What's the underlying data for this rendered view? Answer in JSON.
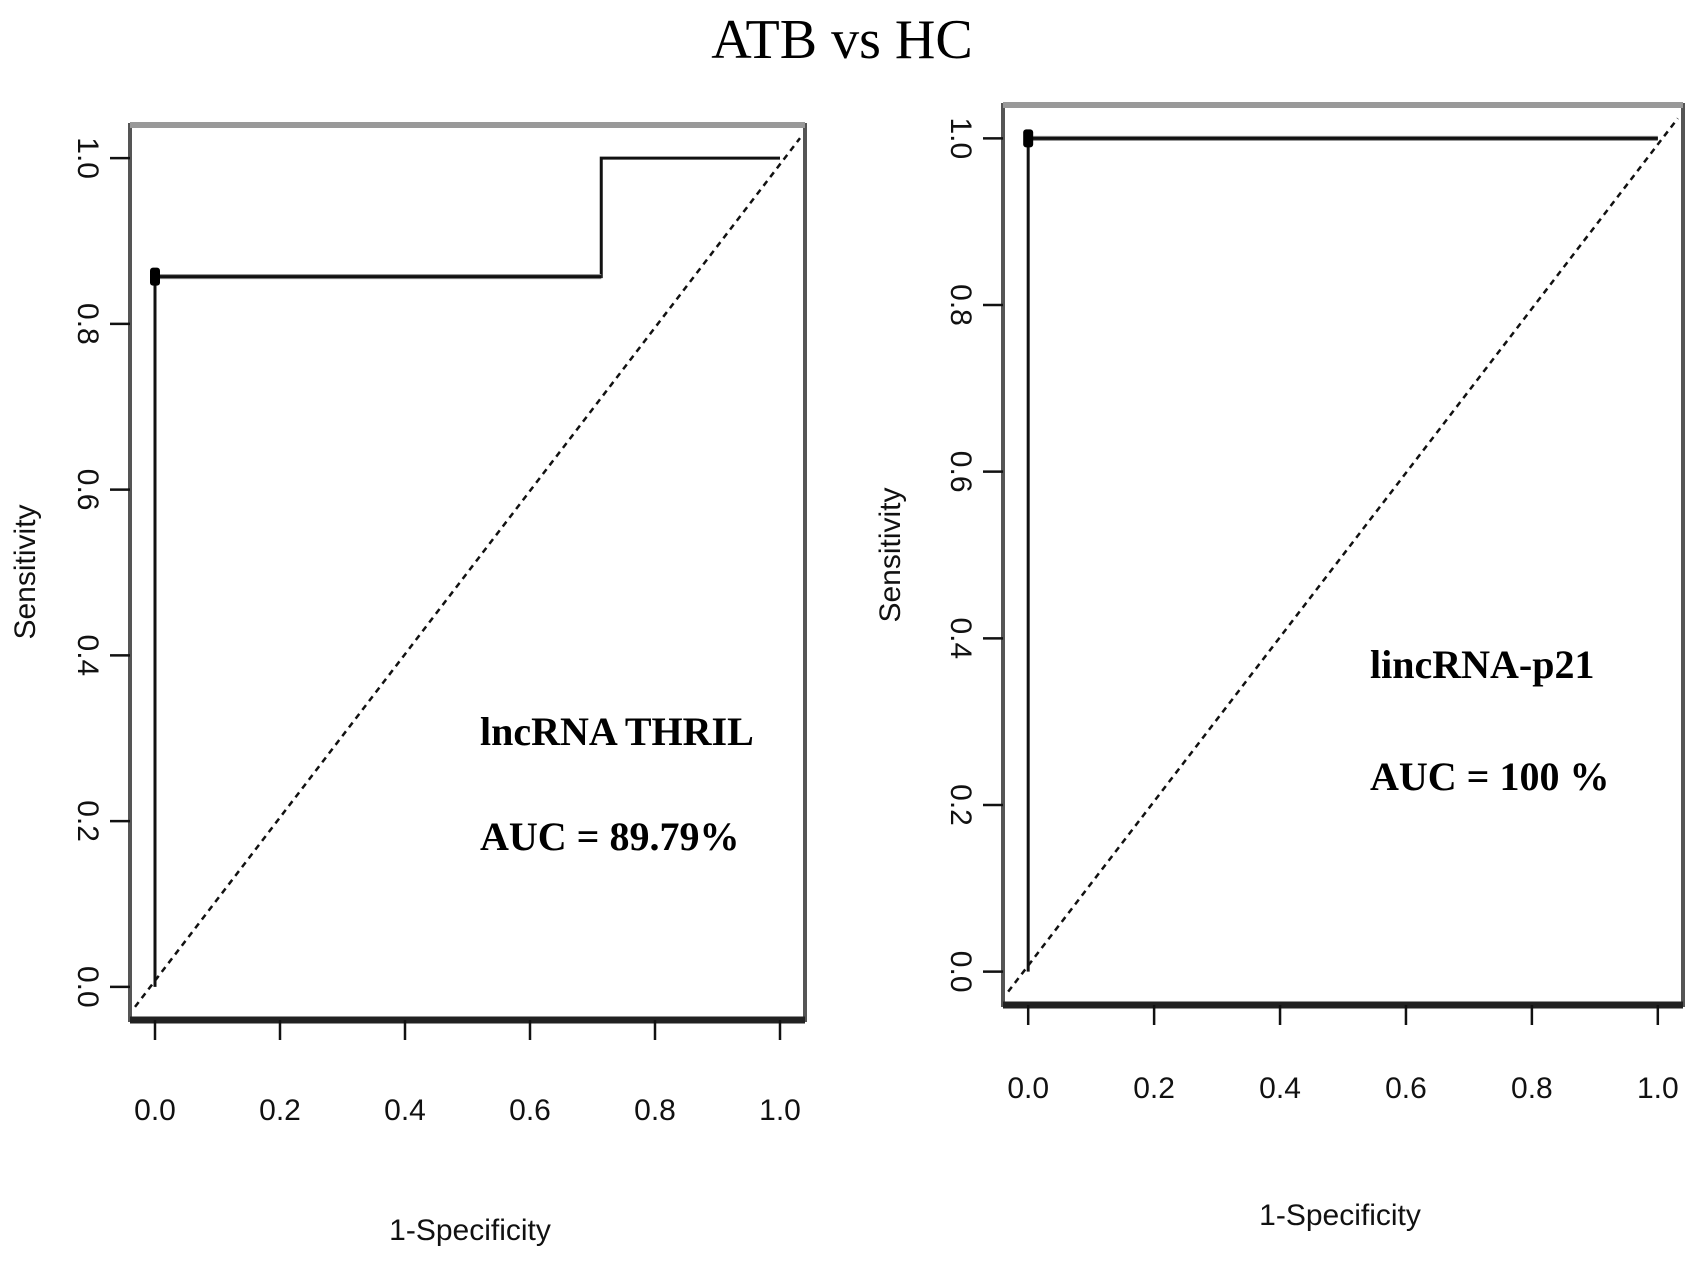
{
  "figure_title": "ATB vs HC",
  "chart_data": [
    {
      "type": "line",
      "name": "lncRNA THRIL",
      "annotation_name": "lncRNA THRIL",
      "annotation_auc": "AUC = 89.79%",
      "xlabel": "1-Specificity",
      "ylabel": "Sensitivity",
      "xlim": [
        -0.04,
        1.04
      ],
      "ylim": [
        -0.04,
        1.04
      ],
      "xticks": [
        "0.0",
        "0.2",
        "0.4",
        "0.6",
        "0.8",
        "1.0"
      ],
      "yticks": [
        "0.0",
        "0.2",
        "0.4",
        "0.6",
        "0.8",
        "1.0"
      ],
      "roc_x": [
        0.0,
        0.0,
        0.714,
        0.714,
        1.0
      ],
      "roc_y": [
        0.0,
        0.857,
        0.857,
        1.0,
        1.0
      ],
      "cut_point": [
        0.0,
        0.857
      ],
      "reference_line": [
        [
          0,
          0
        ],
        [
          1,
          1
        ]
      ],
      "grid": false
    },
    {
      "type": "line",
      "name": "lincRNA-p21",
      "annotation_name": "lincRNA-p21",
      "annotation_auc": "AUC = 100 %",
      "xlabel": "1-Specificity",
      "ylabel": "Sensitivity",
      "xlim": [
        -0.04,
        1.04
      ],
      "ylim": [
        -0.04,
        1.04
      ],
      "xticks": [
        "0.0",
        "0.2",
        "0.4",
        "0.6",
        "0.8",
        "1.0"
      ],
      "yticks": [
        "0.0",
        "0.2",
        "0.4",
        "0.6",
        "0.8",
        "1.0"
      ],
      "roc_x": [
        0.0,
        0.0,
        1.0
      ],
      "roc_y": [
        0.0,
        1.0,
        1.0
      ],
      "cut_point": [
        0.0,
        1.0
      ],
      "reference_line": [
        [
          0,
          0
        ],
        [
          1,
          1
        ]
      ],
      "grid": false
    }
  ]
}
